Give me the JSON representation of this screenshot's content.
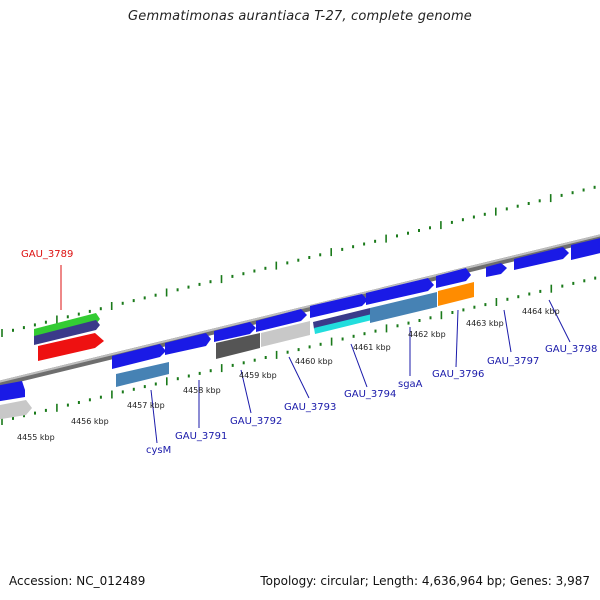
{
  "title": "Gemmatimonas aurantiaca T-27, complete genome",
  "footer": {
    "accession": "Accession: NC_012489",
    "topology": "Topology: circular; Length: 4,636,964 bp; Genes: 3,987"
  },
  "scale_labels": [
    "4455 kbp",
    "4456 kbp",
    "4457 kbp",
    "4458 kbp",
    "4459 kbp",
    "4460 kbp",
    "4461 kbp",
    "4462 kbp",
    "4463 kbp",
    "4464 kbp"
  ],
  "gene_labels": [
    "GAU_3789",
    "cysM",
    "GAU_3791",
    "GAU_3792",
    "GAU_3793",
    "GAU_3794",
    "sgaA",
    "GAU_3796",
    "GAU_3797",
    "GAU_3798"
  ],
  "colors": {
    "backbone": "#8e8e8e",
    "cds": "#1a1ae6",
    "highlight_label": "#dd1111",
    "label": "#1a1aaa",
    "ticks": "#1a7a1a",
    "gene_red": "#ee1111",
    "gene_orange": "#ff8c00",
    "gene_steel": "#4682b4",
    "gene_light_gray": "#c8c8c8",
    "gene_dark_gray": "#555555",
    "gene_green": "#33cc33",
    "gene_navy": "#3a3a8a",
    "gene_cyan": "#22dddd"
  }
}
